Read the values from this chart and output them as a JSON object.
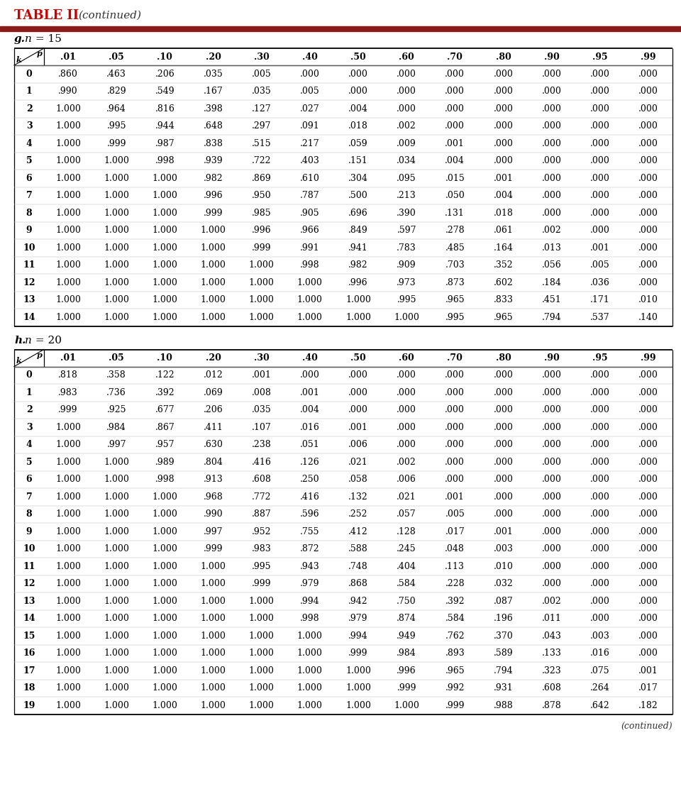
{
  "title": "TABLE II",
  "title_continued": "(continued)",
  "red_bar_color": "#8B1A1A",
  "col_headers": [
    ".01",
    ".05",
    ".10",
    ".20",
    ".30",
    ".40",
    ".50",
    ".60",
    ".70",
    ".80",
    ".90",
    ".95",
    ".99"
  ],
  "section_g_label_g": "g.",
  "section_g_label_n": "n",
  "section_g_label_rest": " = 15",
  "section_h_label_g": "h.",
  "section_h_label_n": "n",
  "section_h_label_rest": " = 20",
  "section_g_rows": [
    [
      0,
      ".860",
      ".463",
      ".206",
      ".035",
      ".005",
      ".000",
      ".000",
      ".000",
      ".000",
      ".000",
      ".000",
      ".000",
      ".000"
    ],
    [
      1,
      ".990",
      ".829",
      ".549",
      ".167",
      ".035",
      ".005",
      ".000",
      ".000",
      ".000",
      ".000",
      ".000",
      ".000",
      ".000"
    ],
    [
      2,
      "1.000",
      ".964",
      ".816",
      ".398",
      ".127",
      ".027",
      ".004",
      ".000",
      ".000",
      ".000",
      ".000",
      ".000",
      ".000"
    ],
    [
      3,
      "1.000",
      ".995",
      ".944",
      ".648",
      ".297",
      ".091",
      ".018",
      ".002",
      ".000",
      ".000",
      ".000",
      ".000",
      ".000"
    ],
    [
      4,
      "1.000",
      ".999",
      ".987",
      ".838",
      ".515",
      ".217",
      ".059",
      ".009",
      ".001",
      ".000",
      ".000",
      ".000",
      ".000"
    ],
    [
      5,
      "1.000",
      "1.000",
      ".998",
      ".939",
      ".722",
      ".403",
      ".151",
      ".034",
      ".004",
      ".000",
      ".000",
      ".000",
      ".000"
    ],
    [
      6,
      "1.000",
      "1.000",
      "1.000",
      ".982",
      ".869",
      ".610",
      ".304",
      ".095",
      ".015",
      ".001",
      ".000",
      ".000",
      ".000"
    ],
    [
      7,
      "1.000",
      "1.000",
      "1.000",
      ".996",
      ".950",
      ".787",
      ".500",
      ".213",
      ".050",
      ".004",
      ".000",
      ".000",
      ".000"
    ],
    [
      8,
      "1.000",
      "1.000",
      "1.000",
      ".999",
      ".985",
      ".905",
      ".696",
      ".390",
      ".131",
      ".018",
      ".000",
      ".000",
      ".000"
    ],
    [
      9,
      "1.000",
      "1.000",
      "1.000",
      "1.000",
      ".996",
      ".966",
      ".849",
      ".597",
      ".278",
      ".061",
      ".002",
      ".000",
      ".000"
    ],
    [
      10,
      "1.000",
      "1.000",
      "1.000",
      "1.000",
      ".999",
      ".991",
      ".941",
      ".783",
      ".485",
      ".164",
      ".013",
      ".001",
      ".000"
    ],
    [
      11,
      "1.000",
      "1.000",
      "1.000",
      "1.000",
      "1.000",
      ".998",
      ".982",
      ".909",
      ".703",
      ".352",
      ".056",
      ".005",
      ".000"
    ],
    [
      12,
      "1.000",
      "1.000",
      "1.000",
      "1.000",
      "1.000",
      "1.000",
      ".996",
      ".973",
      ".873",
      ".602",
      ".184",
      ".036",
      ".000"
    ],
    [
      13,
      "1.000",
      "1.000",
      "1.000",
      "1.000",
      "1.000",
      "1.000",
      "1.000",
      ".995",
      ".965",
      ".833",
      ".451",
      ".171",
      ".010"
    ],
    [
      14,
      "1.000",
      "1.000",
      "1.000",
      "1.000",
      "1.000",
      "1.000",
      "1.000",
      "1.000",
      ".995",
      ".965",
      ".794",
      ".537",
      ".140"
    ]
  ],
  "section_h_rows": [
    [
      0,
      ".818",
      ".358",
      ".122",
      ".012",
      ".001",
      ".000",
      ".000",
      ".000",
      ".000",
      ".000",
      ".000",
      ".000",
      ".000"
    ],
    [
      1,
      ".983",
      ".736",
      ".392",
      ".069",
      ".008",
      ".001",
      ".000",
      ".000",
      ".000",
      ".000",
      ".000",
      ".000",
      ".000"
    ],
    [
      2,
      ".999",
      ".925",
      ".677",
      ".206",
      ".035",
      ".004",
      ".000",
      ".000",
      ".000",
      ".000",
      ".000",
      ".000",
      ".000"
    ],
    [
      3,
      "1.000",
      ".984",
      ".867",
      ".411",
      ".107",
      ".016",
      ".001",
      ".000",
      ".000",
      ".000",
      ".000",
      ".000",
      ".000"
    ],
    [
      4,
      "1.000",
      ".997",
      ".957",
      ".630",
      ".238",
      ".051",
      ".006",
      ".000",
      ".000",
      ".000",
      ".000",
      ".000",
      ".000"
    ],
    [
      5,
      "1.000",
      "1.000",
      ".989",
      ".804",
      ".416",
      ".126",
      ".021",
      ".002",
      ".000",
      ".000",
      ".000",
      ".000",
      ".000"
    ],
    [
      6,
      "1.000",
      "1.000",
      ".998",
      ".913",
      ".608",
      ".250",
      ".058",
      ".006",
      ".000",
      ".000",
      ".000",
      ".000",
      ".000"
    ],
    [
      7,
      "1.000",
      "1.000",
      "1.000",
      ".968",
      ".772",
      ".416",
      ".132",
      ".021",
      ".001",
      ".000",
      ".000",
      ".000",
      ".000"
    ],
    [
      8,
      "1.000",
      "1.000",
      "1.000",
      ".990",
      ".887",
      ".596",
      ".252",
      ".057",
      ".005",
      ".000",
      ".000",
      ".000",
      ".000"
    ],
    [
      9,
      "1.000",
      "1.000",
      "1.000",
      ".997",
      ".952",
      ".755",
      ".412",
      ".128",
      ".017",
      ".001",
      ".000",
      ".000",
      ".000"
    ],
    [
      10,
      "1.000",
      "1.000",
      "1.000",
      ".999",
      ".983",
      ".872",
      ".588",
      ".245",
      ".048",
      ".003",
      ".000",
      ".000",
      ".000"
    ],
    [
      11,
      "1.000",
      "1.000",
      "1.000",
      "1.000",
      ".995",
      ".943",
      ".748",
      ".404",
      ".113",
      ".010",
      ".000",
      ".000",
      ".000"
    ],
    [
      12,
      "1.000",
      "1.000",
      "1.000",
      "1.000",
      ".999",
      ".979",
      ".868",
      ".584",
      ".228",
      ".032",
      ".000",
      ".000",
      ".000"
    ],
    [
      13,
      "1.000",
      "1.000",
      "1.000",
      "1.000",
      "1.000",
      ".994",
      ".942",
      ".750",
      ".392",
      ".087",
      ".002",
      ".000",
      ".000"
    ],
    [
      14,
      "1.000",
      "1.000",
      "1.000",
      "1.000",
      "1.000",
      ".998",
      ".979",
      ".874",
      ".584",
      ".196",
      ".011",
      ".000",
      ".000"
    ],
    [
      15,
      "1.000",
      "1.000",
      "1.000",
      "1.000",
      "1.000",
      "1.000",
      ".994",
      ".949",
      ".762",
      ".370",
      ".043",
      ".003",
      ".000"
    ],
    [
      16,
      "1.000",
      "1.000",
      "1.000",
      "1.000",
      "1.000",
      "1.000",
      ".999",
      ".984",
      ".893",
      ".589",
      ".133",
      ".016",
      ".000"
    ],
    [
      17,
      "1.000",
      "1.000",
      "1.000",
      "1.000",
      "1.000",
      "1.000",
      "1.000",
      ".996",
      ".965",
      ".794",
      ".323",
      ".075",
      ".001"
    ],
    [
      18,
      "1.000",
      "1.000",
      "1.000",
      "1.000",
      "1.000",
      "1.000",
      "1.000",
      ".999",
      ".992",
      ".931",
      ".608",
      ".264",
      ".017"
    ],
    [
      19,
      "1.000",
      "1.000",
      "1.000",
      "1.000",
      "1.000",
      "1.000",
      "1.000",
      "1.000",
      ".999",
      ".988",
      ".878",
      ".642",
      ".182"
    ]
  ],
  "background_color": "#ffffff"
}
